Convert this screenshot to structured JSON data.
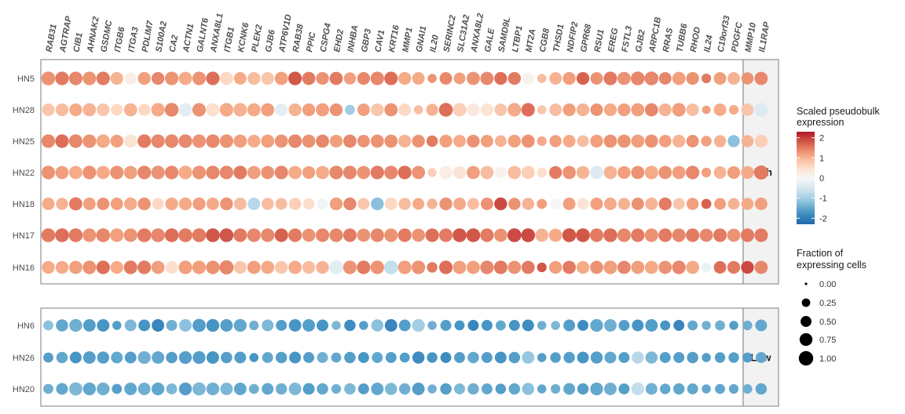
{
  "chart_data": {
    "type": "dotplot",
    "genes": [
      "RAB31",
      "AGTRAP",
      "CIB1",
      "AHNAK2",
      "GSDMC",
      "ITGB6",
      "ITGA3",
      "PDLIM7",
      "S100A2",
      "CA2",
      "ACTN1",
      "GALNT6",
      "ANXA8L1",
      "ITGB1",
      "KCNK6",
      "PLEK2",
      "GJB6",
      "ATP6V1D",
      "RAB38",
      "PPIC",
      "CSPG4",
      "EHD2",
      "INHBA",
      "GBP3",
      "CAV1",
      "KRT16",
      "MMP1",
      "GNAI1",
      "IL20",
      "SERINC2",
      "SLC31A2",
      "ANXA8L2",
      "GALE",
      "SAMD9L",
      "LTBP1",
      "MT2A",
      "CGB8",
      "THSD1",
      "NDFIP2",
      "GPR68",
      "RSU1",
      "EREG",
      "FSTL3",
      "GJB2",
      "ARPC1B",
      "RRAS",
      "TUBB6",
      "RHOD",
      "IL24",
      "C19orf33",
      "PDGFC",
      "MMP10",
      "IL1RAP"
    ],
    "facets": [
      {
        "label": "High",
        "samples": [
          "HN5",
          "HN28",
          "HN25",
          "HN22",
          "HN18",
          "HN17",
          "HN16"
        ]
      },
      {
        "label": "Low",
        "samples": [
          "HN6",
          "HN26",
          "HN20"
        ]
      }
    ],
    "expression": {
      "HN5": [
        1.3,
        1.5,
        1.4,
        1.3,
        1.5,
        1.0,
        0.2,
        1.2,
        1.4,
        1.3,
        1.1,
        1.3,
        1.6,
        0.6,
        1.1,
        0.9,
        0.8,
        1.2,
        1.8,
        1.5,
        1.3,
        1.5,
        1.2,
        1.4,
        1.4,
        1.6,
        1.1,
        1.1,
        1.3,
        1.4,
        1.2,
        1.3,
        1.4,
        1.6,
        1.5,
        0.1,
        0.9,
        1.0,
        1.2,
        1.7,
        1.3,
        1.5,
        1.3,
        1.4,
        1.4,
        1.4,
        1.2,
        1.3,
        1.5,
        1.2,
        1.0,
        1.3,
        1.4
      ],
      "HN28": [
        0.8,
        0.9,
        1.1,
        1.0,
        0.8,
        0.6,
        1.0,
        0.6,
        1.1,
        1.4,
        -0.3,
        1.3,
        0.5,
        1.1,
        1.0,
        1.1,
        1.2,
        -0.3,
        1.0,
        1.2,
        1.2,
        1.3,
        -1.0,
        1.2,
        0.8,
        1.3,
        0.6,
        0.9,
        1.0,
        1.6,
        0.7,
        0.3,
        0.4,
        0.8,
        1.1,
        1.6,
        0.8,
        0.9,
        1.2,
        1.0,
        1.3,
        1.1,
        1.2,
        1.2,
        1.4,
        1.0,
        1.2,
        0.9,
        1.2,
        1.1,
        1.1,
        0.8,
        -0.4
      ],
      "HN25": [
        1.4,
        1.6,
        1.4,
        1.3,
        1.1,
        1.2,
        0.4,
        1.5,
        1.4,
        1.4,
        1.4,
        1.3,
        1.4,
        1.3,
        1.2,
        1.1,
        1.2,
        1.3,
        1.4,
        1.3,
        1.4,
        1.2,
        1.4,
        1.3,
        1.3,
        1.3,
        1.0,
        1.3,
        1.5,
        1.2,
        1.1,
        1.3,
        1.2,
        1.0,
        1.2,
        1.3,
        1.1,
        1.2,
        1.1,
        0.9,
        1.2,
        1.3,
        1.3,
        1.2,
        1.3,
        1.2,
        1.0,
        1.3,
        1.2,
        1.0,
        -1.2,
        1.0,
        0.7
      ],
      "HN22": [
        1.3,
        1.2,
        1.1,
        1.3,
        1.1,
        1.3,
        1.2,
        1.4,
        1.3,
        1.4,
        1.1,
        1.3,
        1.4,
        1.4,
        1.5,
        1.2,
        1.3,
        1.4,
        1.1,
        1.2,
        1.1,
        1.4,
        1.4,
        1.3,
        1.5,
        1.4,
        1.6,
        1.3,
        0.7,
        0.2,
        0.4,
        1.2,
        0.9,
        0.1,
        0.9,
        0.7,
        0.5,
        1.5,
        1.3,
        1.0,
        -0.4,
        1.0,
        1.2,
        1.3,
        1.1,
        1.3,
        1.2,
        1.4,
        1.2,
        1.0,
        1.2,
        1.1,
        1.5
      ],
      "HN18": [
        1.1,
        1.0,
        1.5,
        1.2,
        1.3,
        1.2,
        1.1,
        1.3,
        0.6,
        1.1,
        1.1,
        1.2,
        1.1,
        1.3,
        0.9,
        -0.8,
        0.9,
        0.9,
        0.7,
        0.5,
        -0.1,
        1.2,
        1.4,
        0.8,
        -1.2,
        0.6,
        0.9,
        1.1,
        1.0,
        1.3,
        1.1,
        0.9,
        1.3,
        1.9,
        1.3,
        1.0,
        1.2,
        0.0,
        1.2,
        0.4,
        1.2,
        1.1,
        1.0,
        1.3,
        1.0,
        1.5,
        0.8,
        1.2,
        1.7,
        1.2,
        1.0,
        1.1,
        1.2
      ],
      "HN17": [
        1.5,
        1.6,
        1.5,
        1.3,
        1.4,
        1.2,
        1.3,
        1.5,
        1.4,
        1.6,
        1.5,
        1.5,
        1.8,
        1.8,
        1.5,
        1.4,
        1.4,
        1.7,
        1.5,
        1.3,
        1.4,
        1.4,
        1.5,
        1.3,
        1.4,
        1.3,
        1.5,
        1.3,
        1.6,
        1.5,
        1.8,
        1.8,
        1.5,
        1.3,
        1.9,
        1.9,
        1.0,
        1.1,
        1.8,
        1.8,
        1.5,
        1.6,
        1.4,
        1.5,
        1.3,
        1.5,
        1.4,
        1.5,
        1.4,
        1.5,
        1.3,
        1.5,
        1.5
      ],
      "HN16": [
        1.1,
        1.1,
        1.2,
        1.3,
        1.6,
        1.1,
        1.5,
        1.5,
        1.2,
        0.5,
        1.2,
        1.2,
        1.3,
        1.4,
        0.8,
        1.2,
        1.1,
        0.8,
        1.1,
        0.9,
        1.0,
        -0.3,
        1.3,
        1.5,
        1.3,
        -0.7,
        1.2,
        1.3,
        1.5,
        1.6,
        1.2,
        1.2,
        1.4,
        1.5,
        1.3,
        1.5,
        1.8,
        1.2,
        1.5,
        1.1,
        1.3,
        1.2,
        1.4,
        1.2,
        1.1,
        1.3,
        1.4,
        1.1,
        -0.2,
        1.6,
        1.5,
        1.9,
        1.4
      ]
    },
    "fraction": {
      "HN5": [
        0.9,
        0.85,
        0.85,
        0.85,
        0.85,
        0.75,
        0.6,
        0.75,
        0.75,
        0.85,
        0.8,
        0.85,
        0.85,
        0.8,
        0.7,
        0.75,
        0.75,
        0.8,
        0.85,
        0.8,
        0.75,
        0.8,
        0.65,
        0.75,
        0.85,
        0.85,
        0.75,
        0.7,
        0.3,
        0.7,
        0.6,
        0.8,
        0.8,
        0.75,
        0.75,
        0.65,
        0.3,
        0.7,
        0.75,
        0.75,
        0.7,
        0.85,
        0.8,
        0.9,
        0.9,
        0.7,
        0.8,
        0.75,
        0.35,
        0.7,
        0.7,
        0.65,
        0.8
      ],
      "HN28": [
        0.7,
        0.75,
        0.75,
        0.8,
        0.75,
        0.6,
        0.8,
        0.65,
        0.85,
        0.9,
        0.85,
        0.85,
        0.8,
        0.85,
        0.85,
        0.8,
        0.8,
        0.7,
        0.75,
        0.75,
        0.8,
        0.75,
        0.4,
        0.7,
        0.75,
        0.8,
        0.7,
        0.3,
        0.65,
        0.9,
        0.85,
        0.75,
        0.75,
        0.7,
        0.85,
        0.85,
        0.3,
        0.7,
        0.75,
        0.75,
        0.7,
        0.75,
        0.75,
        0.8,
        0.8,
        0.75,
        0.85,
        0.7,
        0.25,
        0.7,
        0.35,
        0.7,
        0.85
      ],
      "HN25": [
        0.85,
        0.85,
        0.85,
        0.85,
        0.85,
        0.75,
        0.8,
        0.85,
        0.85,
        0.85,
        0.85,
        0.85,
        0.85,
        0.85,
        0.8,
        0.75,
        0.8,
        0.8,
        0.85,
        0.8,
        0.8,
        0.75,
        0.8,
        0.7,
        0.8,
        0.8,
        0.75,
        0.75,
        0.55,
        0.75,
        0.7,
        0.75,
        0.7,
        0.6,
        0.75,
        0.8,
        0.35,
        0.65,
        0.7,
        0.6,
        0.75,
        0.8,
        0.8,
        0.8,
        0.8,
        0.7,
        0.75,
        0.7,
        0.45,
        0.65,
        0.65,
        0.65,
        0.75
      ],
      "HN22": [
        0.85,
        0.8,
        0.8,
        0.85,
        0.8,
        0.85,
        0.8,
        0.85,
        0.85,
        0.85,
        0.85,
        0.85,
        0.85,
        0.85,
        0.85,
        0.8,
        0.8,
        0.85,
        0.8,
        0.75,
        0.8,
        0.85,
        0.85,
        0.8,
        0.85,
        0.85,
        0.85,
        0.8,
        0.3,
        0.8,
        0.75,
        0.8,
        0.8,
        0.6,
        0.8,
        0.8,
        0.4,
        0.75,
        0.8,
        0.75,
        0.8,
        0.8,
        0.75,
        0.8,
        0.85,
        0.8,
        0.8,
        0.85,
        0.35,
        0.7,
        0.75,
        0.75,
        0.95
      ],
      "HN18": [
        0.7,
        0.65,
        0.8,
        0.7,
        0.7,
        0.7,
        0.75,
        0.75,
        0.6,
        0.75,
        0.75,
        0.75,
        0.7,
        0.75,
        0.7,
        0.7,
        0.65,
        0.6,
        0.65,
        0.55,
        0.5,
        0.75,
        0.75,
        0.6,
        0.75,
        0.7,
        0.65,
        0.6,
        0.45,
        0.75,
        0.7,
        0.6,
        0.7,
        0.75,
        0.65,
        0.65,
        0.4,
        0.55,
        0.7,
        0.6,
        0.7,
        0.7,
        0.65,
        0.7,
        0.7,
        0.75,
        0.6,
        0.65,
        0.4,
        0.6,
        0.6,
        0.65,
        0.7
      ],
      "HN17": [
        0.9,
        0.9,
        0.9,
        0.85,
        0.9,
        0.85,
        0.85,
        0.9,
        0.9,
        0.9,
        0.9,
        0.9,
        0.9,
        0.9,
        0.85,
        0.85,
        0.85,
        0.85,
        0.85,
        0.8,
        0.85,
        0.85,
        0.85,
        0.8,
        0.85,
        0.85,
        0.85,
        0.8,
        0.85,
        0.85,
        0.9,
        0.9,
        0.85,
        0.8,
        0.9,
        0.9,
        0.8,
        0.8,
        0.9,
        0.9,
        0.85,
        0.9,
        0.85,
        0.85,
        0.85,
        0.85,
        0.85,
        0.85,
        0.8,
        0.85,
        0.8,
        0.85,
        0.85
      ],
      "HN16": [
        0.75,
        0.75,
        0.8,
        0.85,
        0.85,
        0.75,
        0.85,
        0.85,
        0.8,
        0.7,
        0.85,
        0.85,
        0.85,
        0.95,
        0.75,
        0.8,
        0.8,
        0.75,
        0.8,
        0.75,
        0.75,
        0.9,
        0.85,
        0.85,
        0.85,
        0.9,
        0.85,
        0.85,
        0.45,
        0.85,
        0.8,
        0.8,
        0.85,
        0.85,
        0.8,
        0.8,
        0.35,
        0.75,
        0.8,
        0.75,
        0.8,
        0.85,
        0.8,
        0.8,
        0.8,
        0.8,
        0.85,
        0.8,
        0.35,
        0.7,
        0.75,
        0.75,
        0.8
      ]
    },
    "low_expression": {
      "HN6": [
        -1.2,
        -1.5,
        -1.4,
        -1.6,
        -1.7,
        -1.6,
        -1.3,
        -1.7,
        -1.9,
        -1.4,
        -1.2,
        -1.6,
        -1.7,
        -1.6,
        -1.5,
        -1.4,
        -1.3,
        -1.6,
        -1.7,
        -1.6,
        -1.7,
        -1.3,
        -1.8,
        -1.6,
        -1.2,
        -1.9,
        -1.6,
        -1.0,
        -1.4,
        -1.6,
        -1.7,
        -1.9,
        -1.7,
        -1.5,
        -1.7,
        -1.8,
        -1.4,
        -1.3,
        -1.6,
        -1.8,
        -1.5,
        -1.4,
        -1.6,
        -1.7,
        -1.6,
        -1.7,
        -1.9,
        -1.5,
        -1.4,
        -1.4,
        -1.6,
        -1.4,
        -1.5
      ],
      "HN26": [
        -1.6,
        -1.5,
        -1.7,
        -1.6,
        -1.6,
        -1.5,
        -1.6,
        -1.4,
        -1.5,
        -1.6,
        -1.6,
        -1.6,
        -1.7,
        -1.6,
        -1.6,
        -1.7,
        -1.5,
        -1.6,
        -1.7,
        -1.6,
        -1.4,
        -1.5,
        -1.6,
        -1.7,
        -1.5,
        -1.6,
        -1.6,
        -1.8,
        -1.7,
        -1.8,
        -1.6,
        -1.5,
        -1.6,
        -1.7,
        -1.6,
        -1.1,
        -1.6,
        -1.6,
        -1.6,
        -1.7,
        -1.6,
        -1.5,
        -1.6,
        -0.8,
        -1.3,
        -1.6,
        -1.6,
        -1.6,
        -1.6,
        -1.6,
        -1.6,
        -1.6,
        -1.5
      ],
      "HN20": [
        -1.4,
        -1.5,
        -1.3,
        -1.5,
        -1.4,
        -1.6,
        -1.5,
        -1.4,
        -1.5,
        -1.3,
        -1.6,
        -1.3,
        -1.4,
        -1.3,
        -1.5,
        -1.4,
        -1.5,
        -1.4,
        -1.3,
        -1.6,
        -1.5,
        -1.4,
        -1.3,
        -1.6,
        -1.5,
        -1.3,
        -1.4,
        -1.6,
        -1.4,
        -1.6,
        -1.3,
        -1.4,
        -1.5,
        -1.6,
        -1.5,
        -1.2,
        -1.5,
        -1.4,
        -1.5,
        -1.6,
        -1.5,
        -1.4,
        -1.6,
        -0.7,
        -1.4,
        -1.5,
        -1.5,
        -1.5,
        -1.5,
        -1.5,
        -1.5,
        -1.4,
        -1.5
      ]
    },
    "low_fraction": {
      "HN6": [
        0.4,
        0.65,
        0.75,
        0.7,
        0.7,
        0.3,
        0.6,
        0.6,
        0.7,
        0.5,
        0.7,
        0.8,
        0.75,
        0.7,
        0.75,
        0.35,
        0.6,
        0.5,
        0.7,
        0.7,
        0.6,
        0.3,
        0.55,
        0.3,
        0.65,
        0.7,
        0.6,
        0.75,
        0.3,
        0.5,
        0.4,
        0.5,
        0.5,
        0.4,
        0.5,
        0.6,
        0.3,
        0.3,
        0.6,
        0.5,
        0.75,
        0.7,
        0.5,
        0.6,
        0.7,
        0.4,
        0.5,
        0.4,
        0.3,
        0.4,
        0.3,
        0.35,
        0.6
      ],
      "HN26": [
        0.4,
        0.55,
        0.6,
        0.7,
        0.65,
        0.6,
        0.6,
        0.75,
        0.7,
        0.55,
        0.75,
        0.75,
        0.7,
        0.55,
        0.6,
        0.3,
        0.5,
        0.55,
        0.6,
        0.5,
        0.5,
        0.4,
        0.55,
        0.5,
        0.5,
        0.5,
        0.4,
        0.65,
        0.45,
        0.5,
        0.5,
        0.55,
        0.5,
        0.6,
        0.55,
        0.7,
        0.3,
        0.45,
        0.55,
        0.6,
        0.65,
        0.6,
        0.5,
        0.65,
        0.65,
        0.5,
        0.5,
        0.55,
        0.3,
        0.45,
        0.45,
        0.4,
        0.5
      ],
      "HN20": [
        0.4,
        0.6,
        0.8,
        0.75,
        0.75,
        0.4,
        0.7,
        0.7,
        0.75,
        0.5,
        0.75,
        0.8,
        0.75,
        0.7,
        0.7,
        0.4,
        0.6,
        0.55,
        0.7,
        0.6,
        0.55,
        0.35,
        0.55,
        0.5,
        0.7,
        0.65,
        0.55,
        0.7,
        0.3,
        0.55,
        0.5,
        0.55,
        0.5,
        0.45,
        0.55,
        0.65,
        0.3,
        0.35,
        0.6,
        0.55,
        0.75,
        0.7,
        0.5,
        0.75,
        0.6,
        0.45,
        0.55,
        0.5,
        0.3,
        0.4,
        0.35,
        0.35,
        0.55
      ]
    },
    "color_legend": {
      "title_line1": "Scaled pseudobulk",
      "title_line2": "expression",
      "ticks": [
        "2",
        "1",
        "0",
        "-1",
        "-2"
      ],
      "tick_values": [
        2,
        1,
        0,
        -1,
        -2
      ],
      "range": [
        -2.3,
        2.3
      ],
      "low_color": "#2166ac",
      "mid_color": "#f7f7f7",
      "high_color": "#b2182b"
    },
    "size_legend": {
      "title_line1": "Fraction of",
      "title_line2": "expressing cells",
      "labels": [
        "0.00",
        "0.25",
        "0.50",
        "0.75",
        "1.00"
      ],
      "values": [
        0,
        0.25,
        0.5,
        0.75,
        1
      ]
    },
    "colors": {
      "panel_border": "#9a9a9a",
      "strip_fill": "#f2f2f2",
      "text": "#4d4d4d"
    }
  }
}
